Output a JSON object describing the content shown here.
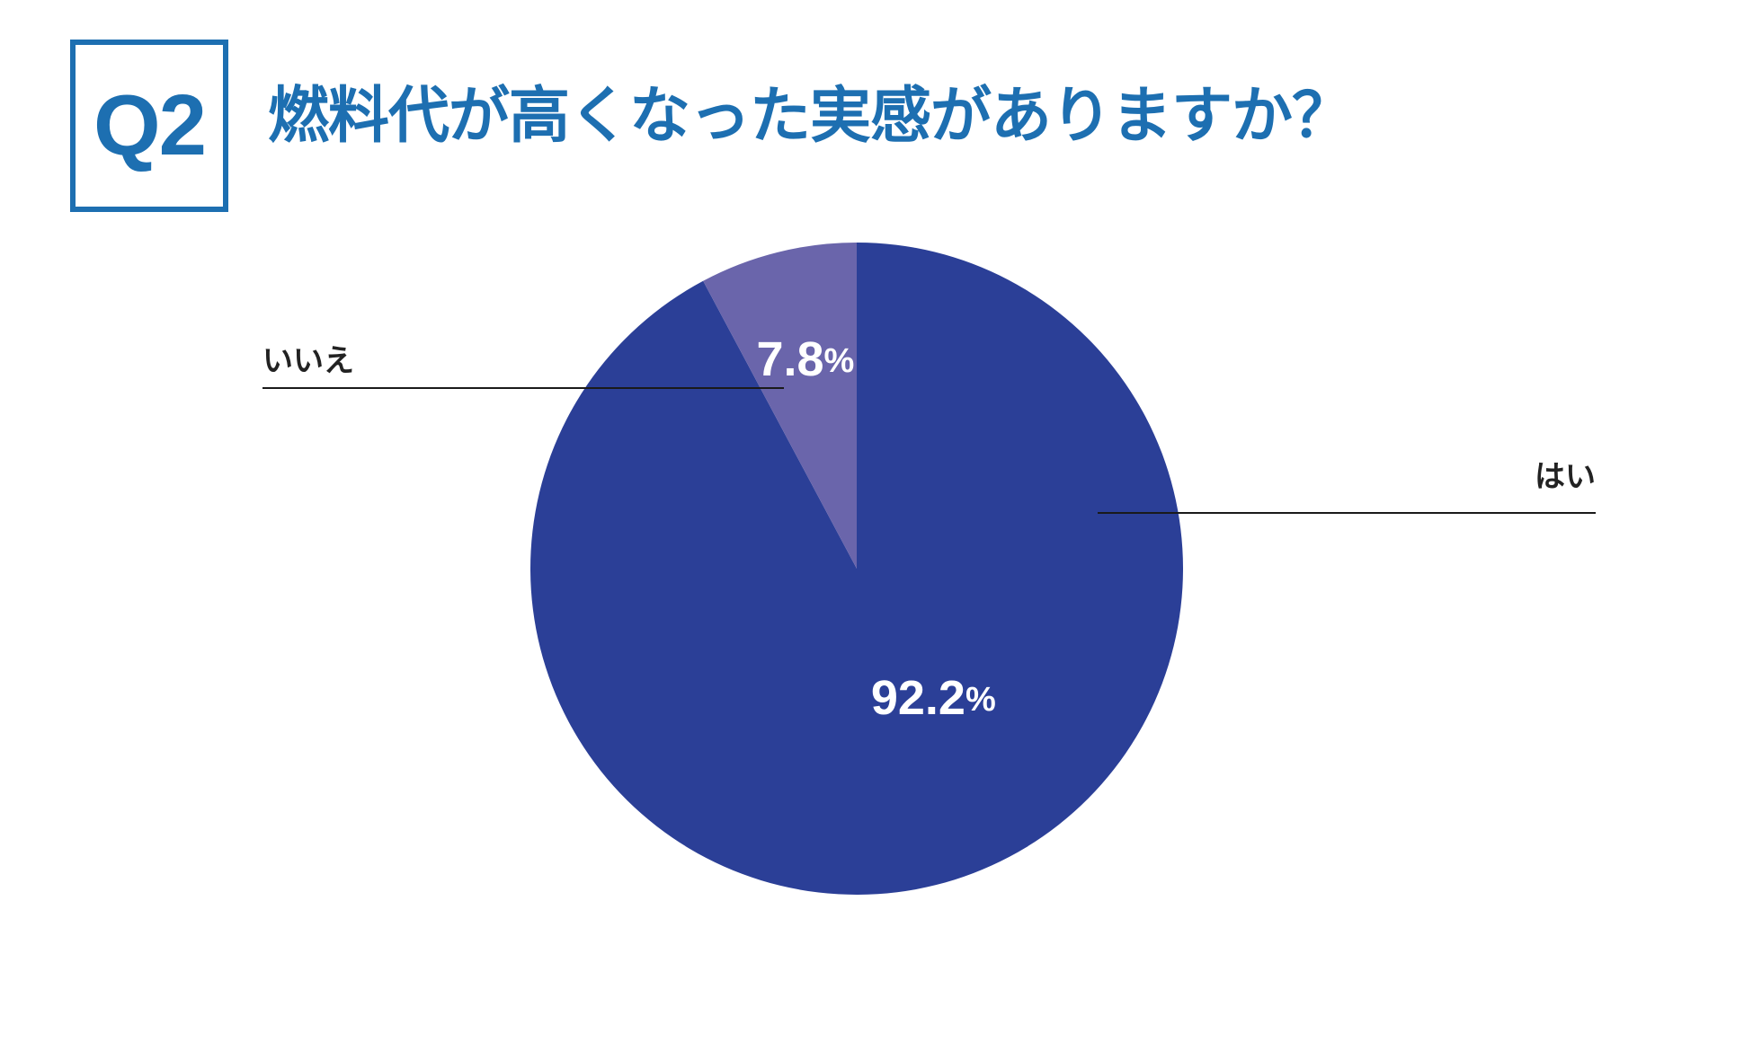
{
  "header": {
    "question_number": "Q2",
    "title": "燃料代が高くなった実感がありますか？"
  },
  "colors": {
    "accent": "#1d6fb1",
    "yes_slice": "#2b3f97",
    "no_slice": "#6a65ab",
    "leader_line": "#1a1a1a"
  },
  "chart_data": {
    "type": "pie",
    "title": "燃料代が高くなった実感がありますか？",
    "slices": [
      {
        "label": "はい",
        "value": 92.2,
        "display": "92.2",
        "color": "#2b3f97"
      },
      {
        "label": "いいえ",
        "value": 7.8,
        "display": "7.8",
        "color": "#6a65ab"
      }
    ],
    "unit": "%",
    "start": "12 o'clock",
    "direction": "clockwise"
  }
}
